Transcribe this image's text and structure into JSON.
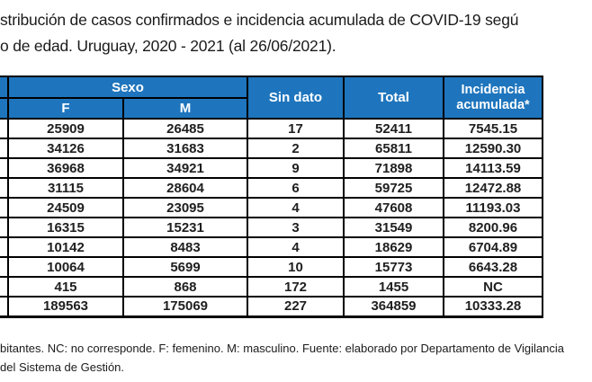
{
  "title": {
    "line1": "stribución de casos confirmados e incidencia acumulada de COVID-19 segú",
    "line2": "o de edad. Uruguay, 2020 - 2021 (al 26/06/2021)."
  },
  "table": {
    "header": {
      "sexo": "Sexo",
      "f": "F",
      "m": "M",
      "sin_dato": "Sin dato",
      "total": "Total",
      "incidencia": "Incidencia acumulada*"
    },
    "rows": [
      [
        "25909",
        "26485",
        "17",
        "52411",
        "7545.15"
      ],
      [
        "34126",
        "31683",
        "2",
        "65811",
        "12590.30"
      ],
      [
        "36968",
        "34921",
        "9",
        "71898",
        "14113.59"
      ],
      [
        "31115",
        "28604",
        "6",
        "59725",
        "12472.88"
      ],
      [
        "24509",
        "23095",
        "4",
        "47608",
        "11193.03"
      ],
      [
        "16315",
        "15231",
        "3",
        "31549",
        "8200.96"
      ],
      [
        "10142",
        "8483",
        "4",
        "18629",
        "6704.89"
      ],
      [
        "10064",
        "5699",
        "10",
        "15773",
        "6643.28"
      ],
      [
        "415",
        "868",
        "172",
        "1455",
        "NC"
      ],
      [
        "189563",
        "175069",
        "227",
        "364859",
        "10333.28"
      ]
    ]
  },
  "footer": {
    "line1": "bitantes. NC: no corresponde. F: femenino. M: masculino. Fuente: elaborado por Departamento de Vigilancia",
    "line2": "del Sistema de Gestión."
  },
  "colors": {
    "header_blue": "#1E75BD",
    "header_text": "#FFFFFF",
    "body_text": "#1F1F1F",
    "border": "#000000"
  }
}
